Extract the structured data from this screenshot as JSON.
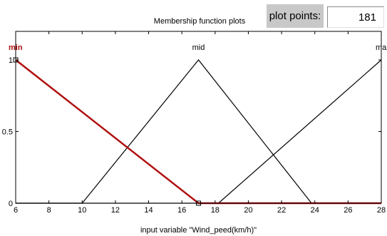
{
  "header": {
    "title": "Membership function plots",
    "plot_points_label": "plot points:",
    "plot_points_value": "181"
  },
  "colors": {
    "selected": "#b01010",
    "normal": "#000000",
    "marker": "#000000"
  },
  "chart_data": {
    "type": "line",
    "title": "Membership function plots",
    "xlabel": "input variable \"Wind_peed(km/h)\"",
    "ylabel": "",
    "xlim": [
      6,
      28
    ],
    "ylim": [
      0,
      1
    ],
    "xticks": [
      6,
      8,
      10,
      12,
      14,
      16,
      18,
      20,
      22,
      24,
      26,
      28
    ],
    "yticks": [
      0,
      0.5,
      1
    ],
    "ytick_labels": [
      "0",
      "0.5",
      "1"
    ],
    "grid": false,
    "series": [
      {
        "name": "min",
        "points": [
          [
            6,
            1
          ],
          [
            17,
            0
          ],
          [
            28,
            0
          ]
        ],
        "selected": true
      },
      {
        "name": "mid",
        "points": [
          [
            6,
            0
          ],
          [
            10,
            0
          ],
          [
            17,
            1
          ],
          [
            23.8,
            0
          ],
          [
            28,
            0
          ]
        ],
        "selected": false
      },
      {
        "name": "max",
        "points": [
          [
            6,
            0
          ],
          [
            18.2,
            0
          ],
          [
            28,
            1
          ]
        ],
        "selected": false
      }
    ]
  }
}
